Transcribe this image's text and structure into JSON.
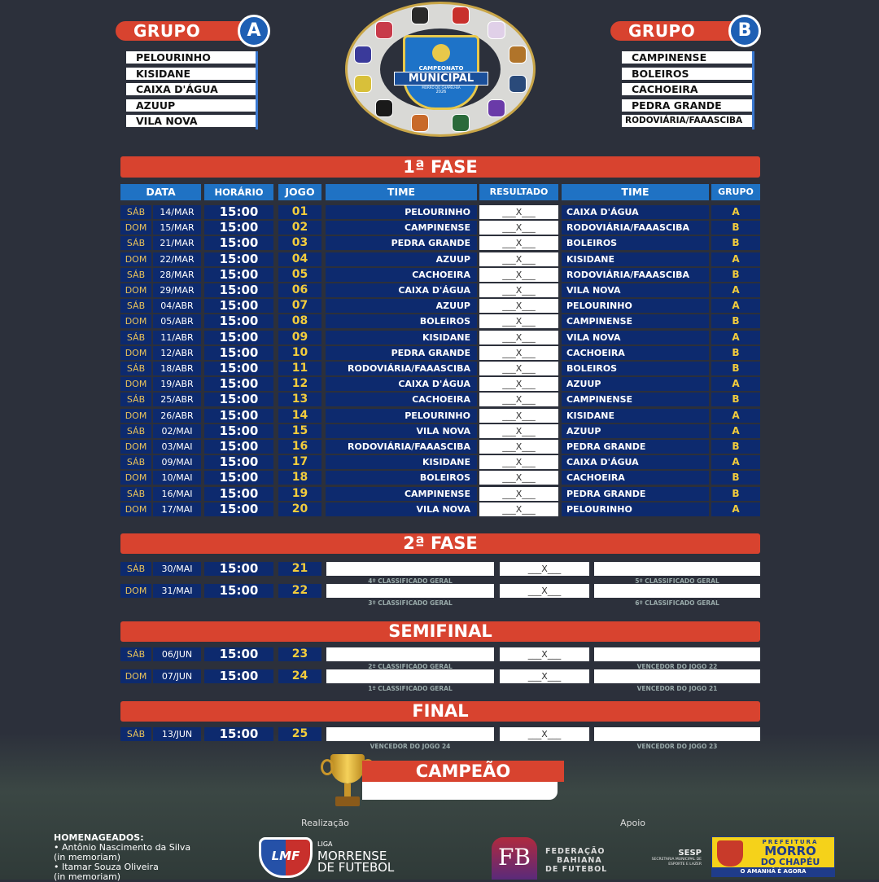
{
  "groups": [
    {
      "label": "GRUPO",
      "letter": "A",
      "teams": [
        "PELOURINHO",
        "KISIDANE",
        "CAIXA D'ÁGUA",
        "AZUUP",
        "VILA NOVA"
      ]
    },
    {
      "label": "GRUPO",
      "letter": "B",
      "teams": [
        "CAMPINENSE",
        "BOLEIROS",
        "CACHOEIRA",
        "PEDRA GRANDE",
        "RODOVIÁRIA/FAAASCIBA"
      ]
    }
  ],
  "logo": {
    "line1": "CAMPEONATO",
    "line2": "MUNICIPAL",
    "line3": "MORRO DO CHAPÉU-BA",
    "year": "2026"
  },
  "phase1": {
    "title": "1ª FASE",
    "headers": [
      "DATA",
      "HORÁRIO",
      "JOGO",
      "TIME",
      "RESULTADO",
      "TIME",
      "GRUPO"
    ],
    "score_placeholder": "___X___",
    "rows": [
      [
        "SÁB",
        "14/MAR",
        "15:00",
        "01",
        "PELOURINHO",
        "CAIXA D'ÁGUA",
        "A"
      ],
      [
        "DOM",
        "15/MAR",
        "15:00",
        "02",
        "CAMPINENSE",
        "RODOVIÁRIA/FAAASCIBA",
        "B"
      ],
      [
        "SÁB",
        "21/MAR",
        "15:00",
        "03",
        "PEDRA GRANDE",
        "BOLEIROS",
        "B"
      ],
      [
        "DOM",
        "22/MAR",
        "15:00",
        "04",
        "AZUUP",
        "KISIDANE",
        "A"
      ],
      [
        "SÁB",
        "28/MAR",
        "15:00",
        "05",
        "CACHOEIRA",
        "RODOVIÁRIA/FAAASCIBA",
        "B"
      ],
      [
        "DOM",
        "29/MAR",
        "15:00",
        "06",
        "CAIXA D'ÁGUA",
        "VILA NOVA",
        "A"
      ],
      [
        "SÁB",
        "04/ABR",
        "15:00",
        "07",
        "AZUUP",
        "PELOURINHO",
        "A"
      ],
      [
        "DOM",
        "05/ABR",
        "15:00",
        "08",
        "BOLEIROS",
        "CAMPINENSE",
        "B"
      ],
      [
        "SÁB",
        "11/ABR",
        "15:00",
        "09",
        "KISIDANE",
        "VILA NOVA",
        "A"
      ],
      [
        "DOM",
        "12/ABR",
        "15:00",
        "10",
        "PEDRA GRANDE",
        "CACHOEIRA",
        "B"
      ],
      [
        "SÁB",
        "18/ABR",
        "15:00",
        "11",
        "RODOVIÁRIA/FAAASCIBA",
        "BOLEIROS",
        "B"
      ],
      [
        "DOM",
        "19/ABR",
        "15:00",
        "12",
        "CAIXA D'ÁGUA",
        "AZUUP",
        "A"
      ],
      [
        "SÁB",
        "25/ABR",
        "15:00",
        "13",
        "CACHOEIRA",
        "CAMPINENSE",
        "B"
      ],
      [
        "DOM",
        "26/ABR",
        "15:00",
        "14",
        "PELOURINHO",
        "KISIDANE",
        "A"
      ],
      [
        "SÁB",
        "02/MAI",
        "15:00",
        "15",
        "VILA NOVA",
        "AZUUP",
        "A"
      ],
      [
        "DOM",
        "03/MAI",
        "15:00",
        "16",
        "RODOVIÁRIA/FAAASCIBA",
        "PEDRA GRANDE",
        "B"
      ],
      [
        "SÁB",
        "09/MAI",
        "15:00",
        "17",
        "KISIDANE",
        "CAIXA D'ÁGUA",
        "A"
      ],
      [
        "DOM",
        "10/MAI",
        "15:00",
        "18",
        "BOLEIROS",
        "CACHOEIRA",
        "B"
      ],
      [
        "SÁB",
        "16/MAI",
        "15:00",
        "19",
        "CAMPINENSE",
        "PEDRA GRANDE",
        "B"
      ],
      [
        "DOM",
        "17/MAI",
        "15:00",
        "20",
        "VILA NOVA",
        "PELOURINHO",
        "A"
      ]
    ]
  },
  "knockout": [
    {
      "title": "2ª FASE",
      "games": [
        {
          "day": "SÁB",
          "date": "30/MAI",
          "time": "15:00",
          "game": "21",
          "home_note": "4º CLASSIFICADO GERAL",
          "away_note": "5º CLASSIFICADO GERAL"
        },
        {
          "day": "DOM",
          "date": "31/MAI",
          "time": "15:00",
          "game": "22",
          "home_note": "3º CLASSIFICADO GERAL",
          "away_note": "6º CLASSIFICADO GERAL"
        }
      ]
    },
    {
      "title": "SEMIFINAL",
      "games": [
        {
          "day": "SÁB",
          "date": "06/JUN",
          "time": "15:00",
          "game": "23",
          "home_note": "2º CLASSIFICADO GERAL",
          "away_note": "VENCEDOR DO JOGO 22"
        },
        {
          "day": "DOM",
          "date": "07/JUN",
          "time": "15:00",
          "game": "24",
          "home_note": "1º CLASSIFICADO GERAL",
          "away_note": "VENCEDOR DO JOGO 21"
        }
      ]
    },
    {
      "title": "FINAL",
      "games": [
        {
          "day": "SÁB",
          "date": "13/JUN",
          "time": "15:00",
          "game": "25",
          "home_note": "VENCEDOR DO JOGO 24",
          "away_note": "VENCEDOR DO JOGO 23"
        }
      ]
    }
  ],
  "champion": {
    "title": "CAMPEÃO",
    "value": ""
  },
  "footer": {
    "realizacao": "Realização",
    "apoio": "Apoio",
    "honorees_title": "HOMENAGEADOS:",
    "honorees": [
      "• Antônio Nascimento da Silva",
      "(in memoriam)",
      "• Itamar Souza Oliveira",
      "(in memoriam)"
    ],
    "lmf": {
      "badge": "LMF",
      "small": "LIGA",
      "line1": "MORRENSE",
      "line2": "DE FUTEBOL"
    },
    "fbf": {
      "line1": "FEDERAÇÃO",
      "line2": "BAHIANA",
      "line3": "DE FUTEBOL"
    },
    "sesp": {
      "title": "SESP",
      "sub": "SECRETARIA MUNICIPAL DE ESPORTE E LAZER"
    },
    "prefeitura": {
      "top": "PREFEITURA",
      "line1": "MORRO",
      "line2": "DO CHAPÉU",
      "slogan": "O AMANHÃ É AGORA"
    }
  },
  "colors": {
    "banner": "#d8432f",
    "header": "#1f72c4",
    "row": "#0d2a6e",
    "day": "#e8c25a",
    "game": "#f2cc3c",
    "background": "#2c303b"
  }
}
